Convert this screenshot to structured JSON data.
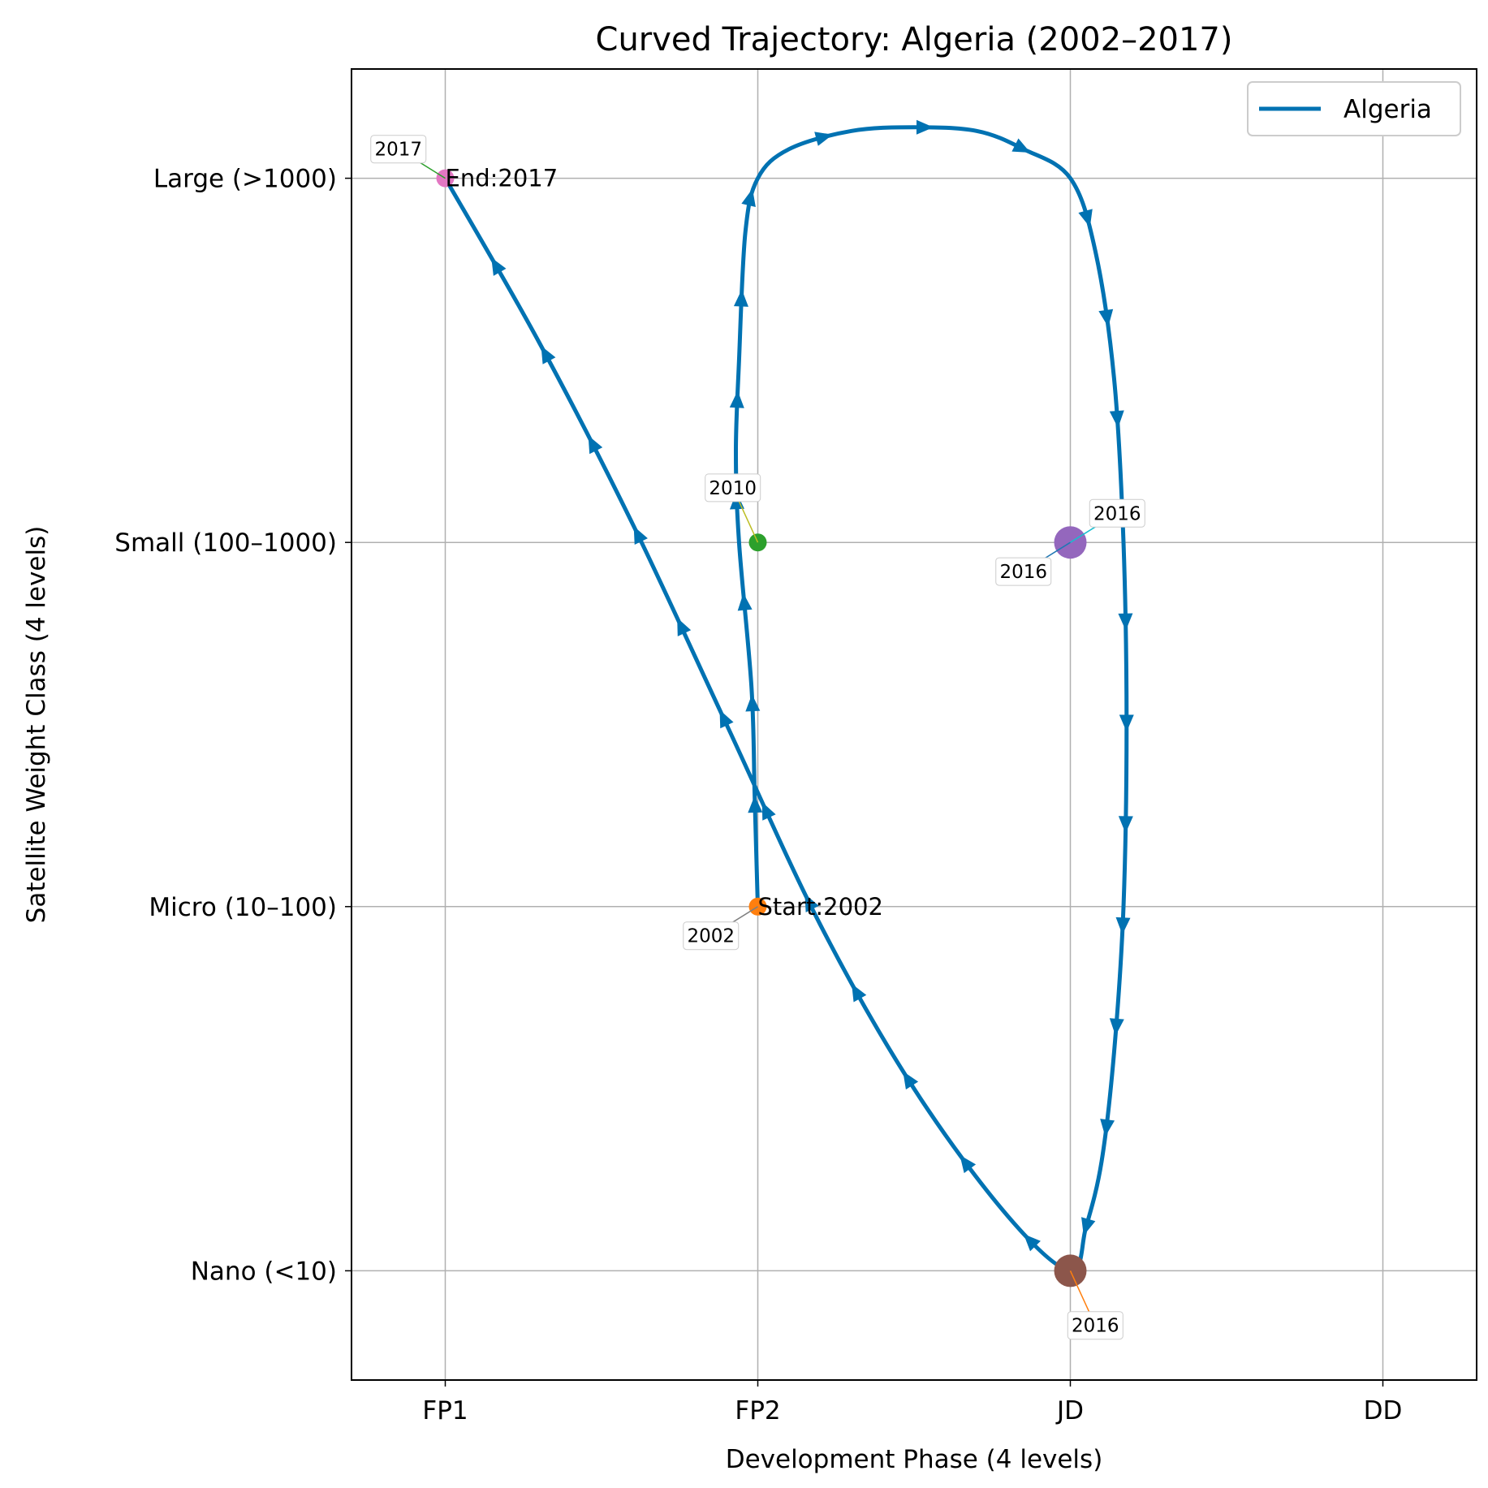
{
  "chart_data": {
    "type": "line",
    "title": "Curved Trajectory: Algeria (2002–2017)",
    "xlabel": "Development Phase (4 levels)",
    "ylabel": "Satellite Weight Class (4 levels)",
    "x_categories": [
      "FP1",
      "FP2",
      "JD",
      "DD"
    ],
    "y_categories": [
      "Nano (<10)",
      "Micro (10–100)",
      "Small (100–1000)",
      "Large (>1000)"
    ],
    "xlim": [
      -0.3,
      3.3
    ],
    "ylim": [
      -0.3,
      3.3
    ],
    "grid": true,
    "legend": {
      "position": "top-right",
      "entries": [
        "Algeria"
      ]
    },
    "series": [
      {
        "name": "Algeria",
        "color": "#0072B2",
        "curve": [
          [
            1.0,
            1.0
          ],
          [
            0.99,
            1.3
          ],
          [
            0.98,
            1.6
          ],
          [
            0.94,
            2.0
          ],
          [
            0.93,
            2.25
          ],
          [
            0.94,
            2.5
          ],
          [
            0.96,
            2.85
          ],
          [
            1.0,
            3.0
          ],
          [
            1.1,
            3.08
          ],
          [
            1.3,
            3.13
          ],
          [
            1.5,
            3.14
          ],
          [
            1.7,
            3.13
          ],
          [
            1.85,
            3.08
          ],
          [
            2.0,
            3.0
          ],
          [
            2.08,
            2.8
          ],
          [
            2.14,
            2.45
          ],
          [
            2.17,
            2.0
          ],
          [
            2.18,
            1.5
          ],
          [
            2.17,
            1.0
          ],
          [
            2.14,
            0.6
          ],
          [
            2.1,
            0.3
          ],
          [
            2.05,
            0.12
          ],
          [
            2.0,
            0.0
          ],
          [
            1.8,
            0.15
          ],
          [
            1.5,
            0.5
          ],
          [
            1.2,
            0.95
          ],
          [
            0.9,
            1.5
          ],
          [
            0.6,
            2.05
          ],
          [
            0.3,
            2.55
          ],
          [
            0.0,
            3.0
          ]
        ],
        "points": [
          {
            "year": "2002",
            "x": 1,
            "y": 1,
            "color": "#ff7f0e",
            "size": 11
          },
          {
            "year": "2010",
            "x": 1,
            "y": 2,
            "color": "#2ca02c",
            "size": 11
          },
          {
            "year": "2016",
            "x": 2,
            "y": 2,
            "color": "#9467bd",
            "size": 20
          },
          {
            "year": "2016",
            "x": 2,
            "y": 0,
            "color": "#8c564b",
            "size": 20
          },
          {
            "year": "2017",
            "x": 0,
            "y": 3,
            "color": "#e377c2",
            "size": 11
          }
        ],
        "annotations": [
          {
            "text": "2002",
            "x": 1,
            "y": 1,
            "dx": -0.15,
            "dy": -0.08,
            "line_color": "#7f7f7f"
          },
          {
            "text": "2010",
            "x": 1,
            "y": 2,
            "dx": -0.08,
            "dy": 0.15,
            "line_color": "#bcbd22"
          },
          {
            "text": "2016",
            "x": 2,
            "y": 2,
            "dx": 0.15,
            "dy": 0.08,
            "line_color": "#17becf"
          },
          {
            "text": "2016",
            "x": 2,
            "y": 2,
            "dx": -0.15,
            "dy": -0.08,
            "line_color": "#1f77b4"
          },
          {
            "text": "2016",
            "x": 2,
            "y": 0,
            "dx": 0.08,
            "dy": -0.15,
            "line_color": "#ff7f0e"
          },
          {
            "text": "2017",
            "x": 0,
            "y": 3,
            "dx": -0.15,
            "dy": 0.08,
            "line_color": "#2ca02c"
          }
        ],
        "labels": [
          {
            "text": "Start:2002",
            "x": 1,
            "y": 1
          },
          {
            "text": "End:2017",
            "x": 0,
            "y": 3
          }
        ]
      }
    ]
  }
}
